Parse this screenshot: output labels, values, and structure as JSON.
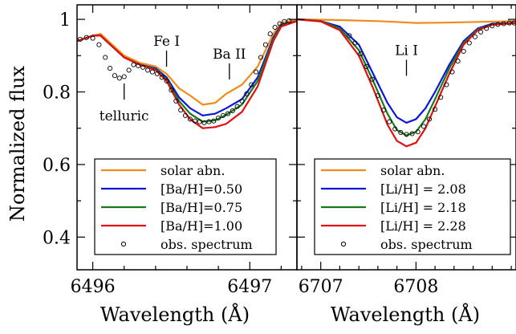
{
  "chart_data": {
    "type": "line",
    "ylabel": "Normalized flux",
    "panels": [
      {
        "id": "ba",
        "xlabel": "Wavelength (Å)",
        "xlim": [
          6495.9,
          6497.3
        ],
        "ylim": [
          0.31,
          1.04
        ],
        "xticks": [
          {
            "value": 6496,
            "label": "6496"
          },
          {
            "value": 6497,
            "label": "6497"
          }
        ],
        "yticks": [
          {
            "value": 1.0,
            "label": "1"
          },
          {
            "value": 0.8,
            "label": "0.8"
          },
          {
            "value": 0.6,
            "label": "0.6"
          },
          {
            "value": 0.4,
            "label": "0.4"
          }
        ],
        "annotations": [
          {
            "text": "Fe I",
            "x": 6496.47,
            "y": 0.865
          },
          {
            "text": "Ba II",
            "x": 6496.87,
            "y": 0.83
          },
          {
            "text": "telluric",
            "x": 6496.2,
            "y": 0.77
          }
        ],
        "legend": {
          "position": "lower-right",
          "entries": [
            "solar abn.",
            "[Ba/H]=0.50",
            "[Ba/H]=0.75",
            "[Ba/H]=1.00",
            "obs. spectrum"
          ]
        },
        "series": [
          {
            "name": "solar abn.",
            "color": "#f28a1a",
            "x": [
              6495.9,
              6496.0,
              6496.05,
              6496.1,
              6496.2,
              6496.3,
              6496.4,
              6496.47,
              6496.55,
              6496.62,
              6496.7,
              6496.78,
              6496.85,
              6496.95,
              6497.05,
              6497.15,
              6497.2,
              6497.3
            ],
            "y": [
              0.94,
              0.955,
              0.96,
              0.94,
              0.9,
              0.88,
              0.87,
              0.85,
              0.81,
              0.79,
              0.765,
              0.77,
              0.795,
              0.82,
              0.87,
              0.96,
              0.99,
              1.0
            ]
          },
          {
            "name": "[Ba/H]=0.50",
            "color": "#0b16d8",
            "x": [
              6495.9,
              6496.0,
              6496.05,
              6496.1,
              6496.2,
              6496.3,
              6496.4,
              6496.47,
              6496.55,
              6496.62,
              6496.7,
              6496.78,
              6496.85,
              6496.95,
              6497.05,
              6497.15,
              6497.2,
              6497.3
            ],
            "y": [
              0.94,
              0.955,
              0.955,
              0.935,
              0.895,
              0.875,
              0.865,
              0.84,
              0.785,
              0.755,
              0.735,
              0.74,
              0.755,
              0.78,
              0.84,
              0.95,
              0.985,
              0.995
            ]
          },
          {
            "name": "[Ba/H]=0.75",
            "color": "#1a7a1a",
            "x": [
              6495.9,
              6496.0,
              6496.05,
              6496.1,
              6496.2,
              6496.3,
              6496.4,
              6496.47,
              6496.55,
              6496.62,
              6496.7,
              6496.78,
              6496.85,
              6496.95,
              6497.05,
              6497.15,
              6497.2,
              6497.3
            ],
            "y": [
              0.94,
              0.955,
              0.955,
              0.935,
              0.895,
              0.875,
              0.862,
              0.835,
              0.775,
              0.74,
              0.718,
              0.722,
              0.737,
              0.765,
              0.83,
              0.945,
              0.982,
              0.995
            ]
          },
          {
            "name": "[Ba/H]=1.00",
            "color": "#e01010",
            "x": [
              6495.9,
              6496.0,
              6496.05,
              6496.1,
              6496.2,
              6496.3,
              6496.4,
              6496.47,
              6496.55,
              6496.62,
              6496.7,
              6496.78,
              6496.85,
              6496.95,
              6497.05,
              6497.15,
              6497.2,
              6497.3
            ],
            "y": [
              0.94,
              0.955,
              0.955,
              0.935,
              0.895,
              0.875,
              0.86,
              0.83,
              0.765,
              0.725,
              0.7,
              0.703,
              0.712,
              0.745,
              0.815,
              0.94,
              0.98,
              0.995
            ]
          }
        ],
        "observed": {
          "name": "obs. spectrum",
          "x": [
            6495.92,
            6495.96,
            6496.0,
            6496.04,
            6496.08,
            6496.11,
            6496.14,
            6496.17,
            6496.2,
            6496.23,
            6496.26,
            6496.29,
            6496.32,
            6496.35,
            6496.38,
            6496.41,
            6496.44,
            6496.47,
            6496.5,
            6496.53,
            6496.56,
            6496.59,
            6496.62,
            6496.65,
            6496.68,
            6496.71,
            6496.74,
            6496.77,
            6496.8,
            6496.83,
            6496.86,
            6496.89,
            6496.92,
            6496.95,
            6496.98,
            6497.01,
            6497.04,
            6497.07,
            6497.1,
            6497.13,
            6497.16,
            6497.19,
            6497.22,
            6497.25
          ],
          "y": [
            0.945,
            0.95,
            0.948,
            0.93,
            0.895,
            0.865,
            0.845,
            0.838,
            0.842,
            0.86,
            0.875,
            0.872,
            0.868,
            0.86,
            0.855,
            0.85,
            0.84,
            0.83,
            0.805,
            0.775,
            0.75,
            0.735,
            0.725,
            0.72,
            0.718,
            0.715,
            0.718,
            0.72,
            0.728,
            0.735,
            0.74,
            0.748,
            0.76,
            0.775,
            0.795,
            0.82,
            0.855,
            0.895,
            0.93,
            0.96,
            0.978,
            0.988,
            0.994,
            0.996
          ]
        }
      },
      {
        "id": "li",
        "xlabel": "Wavelength (Å)",
        "xlim": [
          6706.75,
          6709.05
        ],
        "ylim": [
          0.31,
          1.04
        ],
        "xticks": [
          {
            "value": 6707,
            "label": "6707"
          },
          {
            "value": 6708,
            "label": "6708"
          }
        ],
        "yticks": [],
        "annotations": [
          {
            "text": "Li I",
            "x": 6707.9,
            "y": 0.84
          }
        ],
        "legend": {
          "position": "lower-right",
          "entries": [
            "solar abn.",
            "[Li/H] = 2.08",
            "[Li/H] = 2.18",
            "[Li/H] = 2.28",
            "obs. spectrum"
          ]
        },
        "series": [
          {
            "name": "solar abn.",
            "color": "#f28a1a",
            "x": [
              6706.75,
              6707.2,
              6707.6,
              6707.85,
              6708.0,
              6708.3,
              6708.7,
              6709.05
            ],
            "y": [
              1.0,
              0.998,
              0.995,
              0.992,
              0.99,
              0.991,
              0.993,
              0.995
            ]
          },
          {
            "name": "[Li/H] = 2.08",
            "color": "#0b16d8",
            "x": [
              6706.75,
              6707.0,
              6707.2,
              6707.4,
              6707.55,
              6707.7,
              6707.8,
              6707.9,
              6708.0,
              6708.1,
              6708.2,
              6708.35,
              6708.5,
              6708.65,
              6708.8,
              6709.05
            ],
            "y": [
              1.0,
              0.995,
              0.98,
              0.93,
              0.85,
              0.77,
              0.73,
              0.715,
              0.725,
              0.755,
              0.8,
              0.875,
              0.94,
              0.975,
              0.988,
              0.99
            ]
          },
          {
            "name": "[Li/H] = 2.18",
            "color": "#1a7a1a",
            "x": [
              6706.75,
              6707.0,
              6707.2,
              6707.4,
              6707.55,
              6707.7,
              6707.8,
              6707.9,
              6708.0,
              6708.1,
              6708.2,
              6708.35,
              6708.5,
              6708.65,
              6708.8,
              6709.05
            ],
            "y": [
              1.0,
              0.995,
              0.975,
              0.915,
              0.83,
              0.74,
              0.695,
              0.68,
              0.69,
              0.725,
              0.78,
              0.865,
              0.935,
              0.972,
              0.986,
              0.99
            ]
          },
          {
            "name": "[Li/H] = 2.28",
            "color": "#e01010",
            "x": [
              6706.75,
              6707.0,
              6707.2,
              6707.4,
              6707.55,
              6707.7,
              6707.8,
              6707.9,
              6708.0,
              6708.1,
              6708.2,
              6708.35,
              6708.5,
              6708.65,
              6708.8,
              6709.05
            ],
            "y": [
              1.0,
              0.994,
              0.97,
              0.9,
              0.81,
              0.71,
              0.665,
              0.65,
              0.66,
              0.7,
              0.76,
              0.85,
              0.93,
              0.97,
              0.985,
              0.99
            ]
          }
        ],
        "observed": {
          "name": "obs. spectrum",
          "x": [
            6707.3,
            6707.36,
            6707.42,
            6707.48,
            6707.54,
            6707.6,
            6707.66,
            6707.72,
            6707.78,
            6707.84,
            6707.9,
            6707.96,
            6708.02,
            6708.08,
            6708.14,
            6708.2,
            6708.26,
            6708.32,
            6708.38,
            6708.44,
            6708.5,
            6708.56,
            6708.62,
            6708.68,
            6708.74,
            6708.8,
            6708.86,
            6708.92,
            6708.98,
            6709.03
          ],
          "y": [
            0.955,
            0.935,
            0.905,
            0.87,
            0.835,
            0.79,
            0.75,
            0.718,
            0.698,
            0.688,
            0.683,
            0.685,
            0.69,
            0.705,
            0.725,
            0.752,
            0.785,
            0.82,
            0.855,
            0.885,
            0.912,
            0.935,
            0.952,
            0.965,
            0.975,
            0.982,
            0.986,
            0.988,
            0.99,
            0.99
          ]
        }
      }
    ]
  }
}
